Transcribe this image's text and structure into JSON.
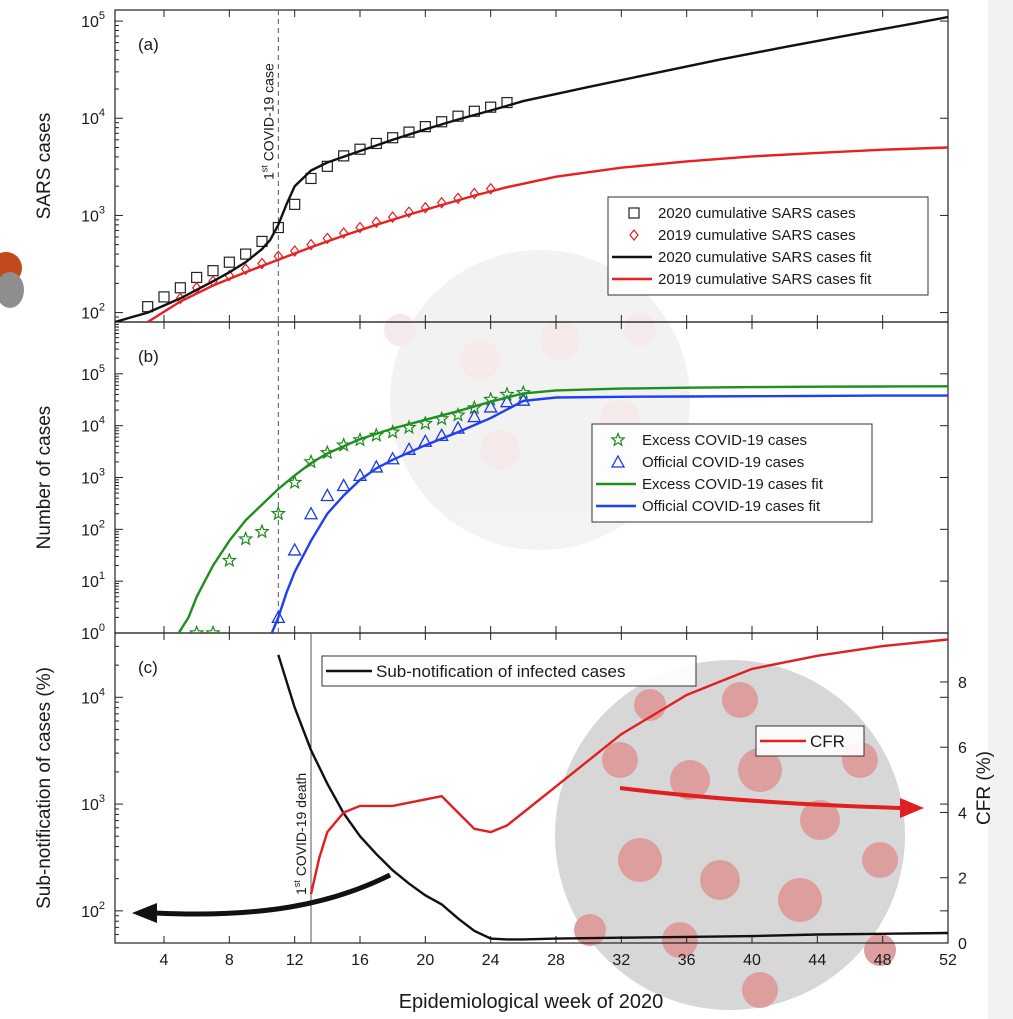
{
  "figure": {
    "x_axis_label": "Epidemiological week of 2020",
    "x_ticks": [
      4,
      8,
      12,
      16,
      20,
      24,
      28,
      32,
      36,
      40,
      44,
      48,
      52
    ],
    "x_range": [
      1,
      52
    ]
  },
  "chart_data": [
    {
      "panel": "(a)",
      "type": "scatter",
      "ylabel": "SARS cases",
      "y_scale": "log",
      "ylim": [
        80,
        130000
      ],
      "y_ticks": [
        {
          "value": 100,
          "base": "10",
          "exp": "2"
        },
        {
          "value": 1000,
          "base": "10",
          "exp": "3"
        },
        {
          "value": 10000,
          "base": "10",
          "exp": "4"
        },
        {
          "value": 100000,
          "base": "10",
          "exp": "5"
        }
      ],
      "vertical_line": {
        "x": 11,
        "label_sup": "st",
        "label_pre": "1",
        "label_post": " COVID-19 case",
        "style": "dashed"
      },
      "legend_position": "lower-right",
      "series": [
        {
          "name": "2020 cumulative SARS cases",
          "kind": "points",
          "marker": "square",
          "color": "#222222",
          "x": [
            3,
            4,
            5,
            6,
            7,
            8,
            9,
            10,
            11,
            12,
            13,
            14,
            15,
            16,
            17,
            18,
            19,
            20,
            21,
            22,
            23,
            24,
            25
          ],
          "y": [
            115,
            145,
            180,
            230,
            270,
            330,
            400,
            540,
            750,
            1300,
            2400,
            3200,
            4100,
            4800,
            5500,
            6300,
            7200,
            8200,
            9200,
            10500,
            11800,
            13000,
            14500
          ]
        },
        {
          "name": "2019 cumulative SARS cases",
          "kind": "points",
          "marker": "diamond",
          "color": "#e02020",
          "x": [
            5,
            6,
            7,
            8,
            9,
            10,
            11,
            12,
            13,
            14,
            15,
            16,
            17,
            18,
            19,
            20,
            21,
            22,
            23,
            24
          ],
          "y": [
            140,
            180,
            210,
            240,
            280,
            320,
            380,
            430,
            500,
            580,
            660,
            750,
            850,
            960,
            1080,
            1200,
            1350,
            1500,
            1680,
            1880
          ]
        },
        {
          "name": "2020 cumulative SARS cases fit",
          "kind": "line",
          "color": "#111111",
          "x": [
            1,
            3,
            5,
            7,
            8,
            9,
            10,
            10.5,
            11,
            11.5,
            12,
            13,
            14,
            16,
            18,
            20,
            22,
            24,
            26,
            30,
            34,
            38,
            42,
            46,
            50,
            52
          ],
          "y": [
            80,
            100,
            140,
            210,
            260,
            330,
            450,
            560,
            800,
            1300,
            2000,
            2900,
            3500,
            4600,
            6000,
            7700,
            9700,
            12000,
            15000,
            21000,
            29000,
            40000,
            54000,
            72000,
            95000,
            110000
          ]
        },
        {
          "name": "2019 cumulative SARS cases fit",
          "kind": "line",
          "color": "#e82020",
          "x": [
            3,
            5,
            7,
            9,
            11,
            13,
            15,
            17,
            19,
            21,
            23,
            25,
            28,
            32,
            36,
            40,
            44,
            48,
            52
          ],
          "y": [
            80,
            130,
            190,
            260,
            350,
            470,
            620,
            800,
            1020,
            1280,
            1600,
            1950,
            2500,
            3100,
            3600,
            4050,
            4400,
            4750,
            5000
          ]
        }
      ]
    },
    {
      "panel": "(b)",
      "type": "scatter",
      "ylabel": "Number of cases",
      "y_scale": "log",
      "ylim": [
        1,
        1000000
      ],
      "y_ticks": [
        {
          "value": 1,
          "base": "10",
          "exp": "0"
        },
        {
          "value": 10,
          "base": "10",
          "exp": "1"
        },
        {
          "value": 100,
          "base": "10",
          "exp": "2"
        },
        {
          "value": 1000,
          "base": "10",
          "exp": "3"
        },
        {
          "value": 10000,
          "base": "10",
          "exp": "4"
        },
        {
          "value": 100000,
          "base": "10",
          "exp": "5"
        }
      ],
      "vertical_line": {
        "x": 11,
        "style": "dashed"
      },
      "legend_position": "center-right",
      "series": [
        {
          "name": "Excess COVID-19 cases",
          "kind": "points",
          "marker": "star",
          "color": "#1a8a1a",
          "x": [
            6,
            7,
            8,
            9,
            10,
            11,
            12,
            13,
            14,
            15,
            16,
            17,
            18,
            19,
            20,
            21,
            22,
            23,
            24,
            25,
            26
          ],
          "y": [
            1,
            1,
            25,
            65,
            90,
            200,
            800,
            2000,
            3000,
            4200,
            5300,
            6500,
            7500,
            9200,
            11000,
            13500,
            16000,
            22000,
            32000,
            40000,
            43000
          ]
        },
        {
          "name": "Official COVID-19 cases",
          "kind": "points",
          "marker": "triangle",
          "color": "#1a3adf",
          "x": [
            11,
            12,
            13,
            14,
            15,
            16,
            17,
            18,
            19,
            20,
            21,
            22,
            23,
            24,
            25,
            26
          ],
          "y": [
            2,
            40,
            200,
            450,
            700,
            1100,
            1600,
            2300,
            3500,
            5000,
            6500,
            9000,
            15000,
            23000,
            29000,
            31000
          ]
        },
        {
          "name": "Excess COVID-19 cases fit",
          "kind": "line",
          "color": "#1f8f1f",
          "x": [
            4.9,
            5.5,
            6,
            6.5,
            7,
            8,
            9,
            10,
            11,
            12,
            13,
            14,
            16,
            18,
            20,
            22,
            24,
            26,
            28,
            32,
            36,
            40,
            44,
            48,
            52
          ],
          "y": [
            1,
            2,
            5,
            10,
            20,
            60,
            150,
            300,
            600,
            1100,
            1900,
            2900,
            5500,
            8800,
            13000,
            19000,
            29000,
            42000,
            48000,
            52000,
            54000,
            55500,
            56500,
            57000,
            57500
          ]
        },
        {
          "name": "Official COVID-19 cases fit",
          "kind": "line",
          "color": "#1f3ff2",
          "x": [
            10.6,
            11,
            11.5,
            12,
            13,
            14,
            15,
            16,
            17,
            18,
            20,
            22,
            24,
            26,
            28,
            32,
            36,
            40,
            44,
            48,
            52
          ],
          "y": [
            1,
            2,
            6,
            15,
            60,
            200,
            450,
            900,
            1500,
            2200,
            4200,
            7500,
            14000,
            30000,
            35000,
            36000,
            36500,
            37000,
            37500,
            38000,
            38000
          ]
        }
      ]
    },
    {
      "panel": "(c)",
      "type": "line",
      "ylabel": "Sub-notification of cases (%)",
      "y_scale": "log",
      "ylim": [
        50,
        40000
      ],
      "y_ticks": [
        {
          "value": 100,
          "base": "10",
          "exp": "2"
        },
        {
          "value": 1000,
          "base": "10",
          "exp": "3"
        },
        {
          "value": 10000,
          "base": "10",
          "exp": "4"
        }
      ],
      "y2label": "CFR (%)",
      "y2lim": [
        0,
        9.5
      ],
      "y2_ticks": [
        "0",
        "2",
        "4",
        "6",
        "8"
      ],
      "vertical_line": {
        "x": 13,
        "label_sup": "st",
        "label_pre": "1",
        "label_post": " COVID-19 death",
        "style": "solid"
      },
      "series": [
        {
          "name": "Sub-notification of infected cases",
          "kind": "line",
          "axis": "left",
          "color": "#111111",
          "x": [
            11,
            12,
            13,
            14,
            15,
            16,
            17,
            18,
            19,
            20,
            21,
            22,
            23,
            24,
            25,
            26,
            28,
            32,
            36,
            40,
            44,
            48,
            52
          ],
          "y": [
            25000,
            8000,
            3200,
            1550,
            820,
            500,
            340,
            240,
            180,
            140,
            115,
            85,
            65,
            55,
            54,
            54,
            55,
            56,
            57,
            58,
            60,
            61,
            62
          ]
        },
        {
          "name": "CFR",
          "kind": "line",
          "axis": "right",
          "color": "#e02020",
          "x": [
            13,
            13.5,
            14,
            15,
            16,
            17,
            18,
            19,
            20,
            21,
            22,
            23,
            24,
            25,
            26,
            28,
            30,
            32,
            34,
            36,
            38,
            40,
            44,
            48,
            52
          ],
          "y": [
            1.5,
            2.6,
            3.4,
            4.0,
            4.2,
            4.2,
            4.2,
            4.3,
            4.4,
            4.5,
            4.0,
            3.5,
            3.4,
            3.6,
            4.0,
            4.8,
            5.6,
            6.4,
            7.0,
            7.6,
            8.0,
            8.4,
            8.8,
            9.1,
            9.3
          ]
        }
      ]
    }
  ]
}
